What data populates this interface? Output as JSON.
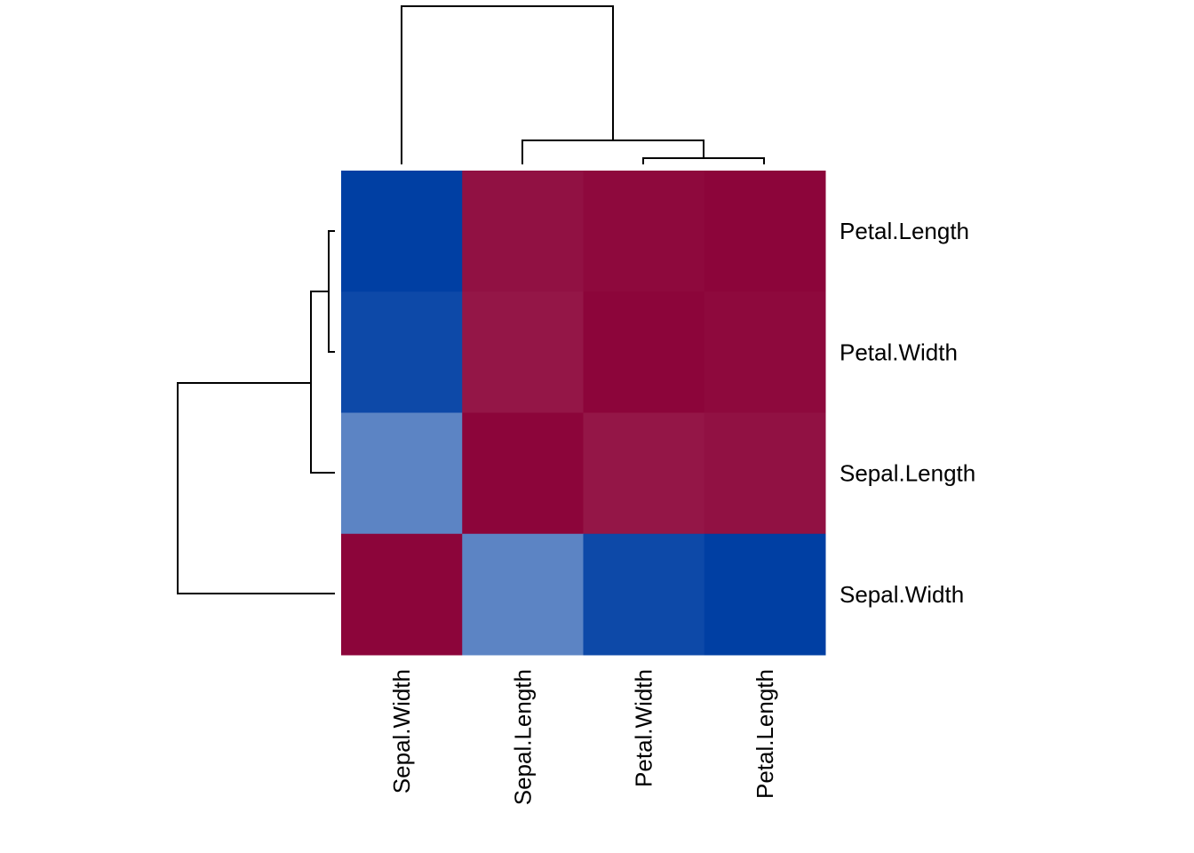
{
  "chart_data": {
    "type": "heatmap",
    "title": "",
    "columns": [
      "Sepal.Width",
      "Sepal.Length",
      "Petal.Width",
      "Petal.Length"
    ],
    "rows": [
      "Petal.Length",
      "Petal.Width",
      "Sepal.Length",
      "Sepal.Width"
    ],
    "values": [
      [
        -0.43,
        0.87,
        0.96,
        1.0
      ],
      [
        -0.37,
        0.82,
        1.0,
        0.96
      ],
      [
        -0.12,
        1.0,
        0.82,
        0.87
      ],
      [
        1.0,
        -0.12,
        -0.37,
        -0.43
      ]
    ],
    "color_scale": {
      "low": "#003FA3",
      "mid": "#FFFFFF",
      "high": "#8C053A",
      "range": [
        -0.43,
        1.0
      ]
    },
    "column_dendrogram": true,
    "row_dendrogram": true,
    "legend": "none"
  }
}
